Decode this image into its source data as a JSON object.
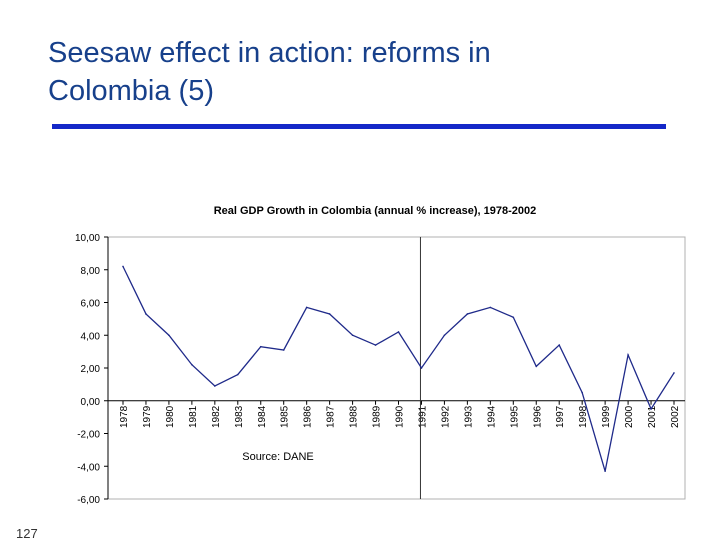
{
  "slide": {
    "title_line1": "Seesaw effect in action: reforms in",
    "title_line2": "Colombia (5)",
    "page_number": "127"
  },
  "colors": {
    "title": "#17408b",
    "rule": "#1428c8",
    "series": "#1f2a8a"
  },
  "chart_data": {
    "type": "line",
    "title": "Real GDP Growth in Colombia (annual % increase), 1978-2002",
    "annotation": "Source: DANE",
    "categories": [
      "1978",
      "1979",
      "1980",
      "1981",
      "1982",
      "1983",
      "1984",
      "1985",
      "1986",
      "1987",
      "1988",
      "1989",
      "1990",
      "1991",
      "1992",
      "1993",
      "1994",
      "1995",
      "1996",
      "1997",
      "1998",
      "1999",
      "2000",
      "2001",
      "2002"
    ],
    "series": [
      {
        "name": "Real GDP Growth",
        "values": [
          8.2,
          5.3,
          4.0,
          2.2,
          0.9,
          1.6,
          3.3,
          3.1,
          5.7,
          5.3,
          4.0,
          3.4,
          4.2,
          2.0,
          4.0,
          5.3,
          5.7,
          5.1,
          2.1,
          3.4,
          0.5,
          -4.3,
          2.8,
          -0.5,
          1.7
        ]
      }
    ],
    "ylim": [
      -6,
      10
    ],
    "yticks": [
      "-6,00",
      "-4,00",
      "-2,00",
      "0,00",
      "2,00",
      "4,00",
      "6,00",
      "8,00",
      "10,00"
    ],
    "ytick_values": [
      -6,
      -4,
      -2,
      0,
      2,
      4,
      6,
      8,
      10
    ],
    "reference_line_category": "1991",
    "grid": false
  }
}
